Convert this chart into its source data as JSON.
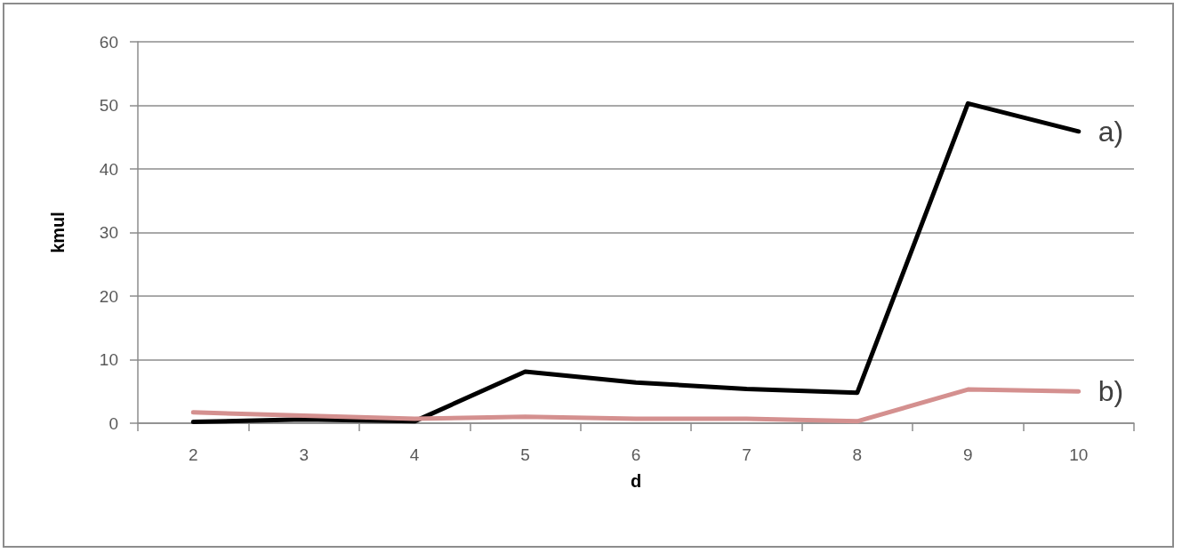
{
  "chart_data": {
    "type": "line",
    "xlabel": "d",
    "ylabel": "kmul",
    "categories": [
      "2",
      "3",
      "4",
      "5",
      "6",
      "7",
      "8",
      "9",
      "10"
    ],
    "series": [
      {
        "name": "a)",
        "color": "#000000",
        "values": [
          0.2,
          0.6,
          0.3,
          8.1,
          6.4,
          5.4,
          4.8,
          50.3,
          45.9
        ]
      },
      {
        "name": "b)",
        "color": "#d4908f",
        "values": [
          1.7,
          1.2,
          0.7,
          1.0,
          0.7,
          0.7,
          0.3,
          5.3,
          5.0
        ]
      }
    ],
    "ylim": [
      0,
      60
    ],
    "yticks": [
      0,
      10,
      20,
      30,
      40,
      50,
      60
    ],
    "grid": "y",
    "legend": false,
    "marker": "none",
    "line_style": "solid"
  }
}
